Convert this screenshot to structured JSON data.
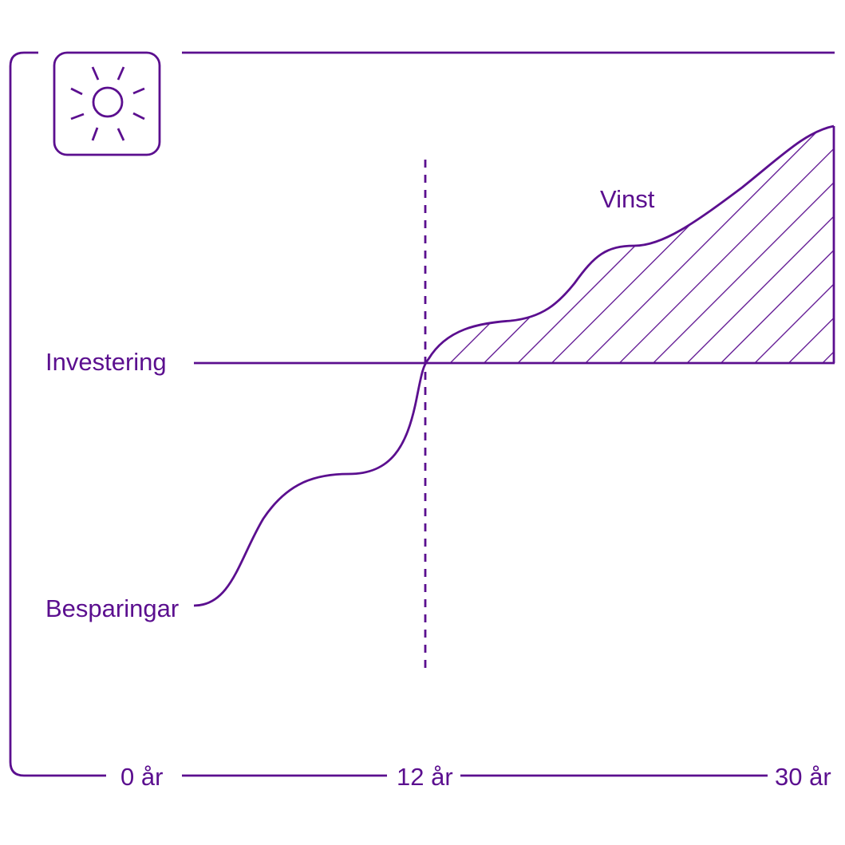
{
  "colors": {
    "accent": "#5b0f8f",
    "background": "#ffffff"
  },
  "icon": "sun-icon",
  "labels": {
    "profit": "Vinst",
    "investment": "Investering",
    "savings": "Besparingar"
  },
  "x_axis": {
    "ticks": [
      "0 år",
      "12 år",
      "30 år"
    ]
  }
}
